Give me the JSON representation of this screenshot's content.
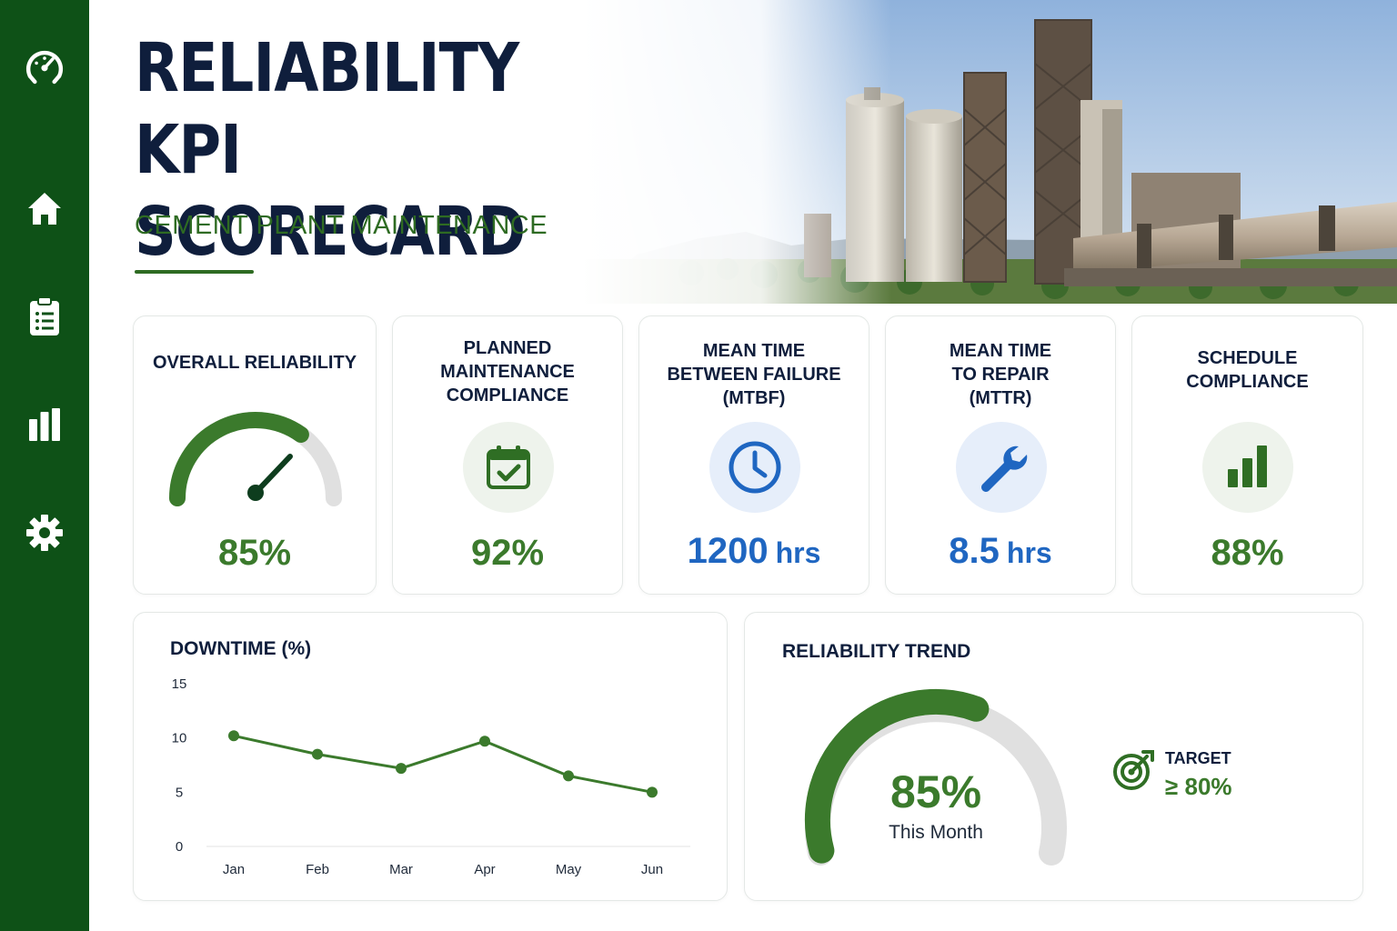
{
  "header": {
    "title_line1": "RELIABILITY KPI",
    "title_line2": "SCORECARD",
    "subtitle": "CEMENT PLANT MAINTENANCE"
  },
  "sidebar": {
    "items": [
      {
        "icon": "speedometer-icon"
      },
      {
        "icon": "home-icon"
      },
      {
        "icon": "clipboard-icon"
      },
      {
        "icon": "bar-chart-icon"
      },
      {
        "icon": "gear-icon"
      }
    ]
  },
  "colors": {
    "sidebar": "#0e5117",
    "accent_green": "#3b7a2c",
    "accent_blue": "#1f66c1",
    "navy": "#0f1e3c"
  },
  "kpis": [
    {
      "title": "OVERALL RELIABILITY",
      "value": "85%",
      "gauge_fraction": 0.85,
      "icon": "gauge-icon"
    },
    {
      "title": "PLANNED\nMAINTENANCE\nCOMPLIANCE",
      "value": "92%",
      "icon": "calendar-check-icon"
    },
    {
      "title": "MEAN TIME\nBETWEEN FAILURE\n(MTBF)",
      "value": "1200",
      "unit": "hrs",
      "icon": "clock-icon"
    },
    {
      "title": "MEAN TIME\nTO REPAIR\n(MTTR)",
      "value": "8.5",
      "unit": "hrs",
      "icon": "wrench-icon"
    },
    {
      "title": "SCHEDULE\nCOMPLIANCE",
      "value": "88%",
      "icon": "bar-chart-icon"
    }
  ],
  "downtime": {
    "title": "DOWNTIME (%)"
  },
  "chart_data": {
    "type": "line",
    "title": "DOWNTIME (%)",
    "categories": [
      "Jan",
      "Feb",
      "Mar",
      "Apr",
      "May",
      "Jun"
    ],
    "values": [
      10.2,
      8.5,
      7.2,
      9.7,
      6.5,
      5.0
    ],
    "yticks": [
      "15",
      "10",
      "5",
      "0"
    ],
    "ylim": [
      0,
      15
    ],
    "grid": false,
    "color": "#3b7a2c"
  },
  "reliability_trend": {
    "title": "RELIABILITY TREND",
    "value": "85%",
    "caption": "This Month",
    "fraction": 0.85,
    "target_label": "TARGET",
    "target_value": "≥ 80%"
  }
}
